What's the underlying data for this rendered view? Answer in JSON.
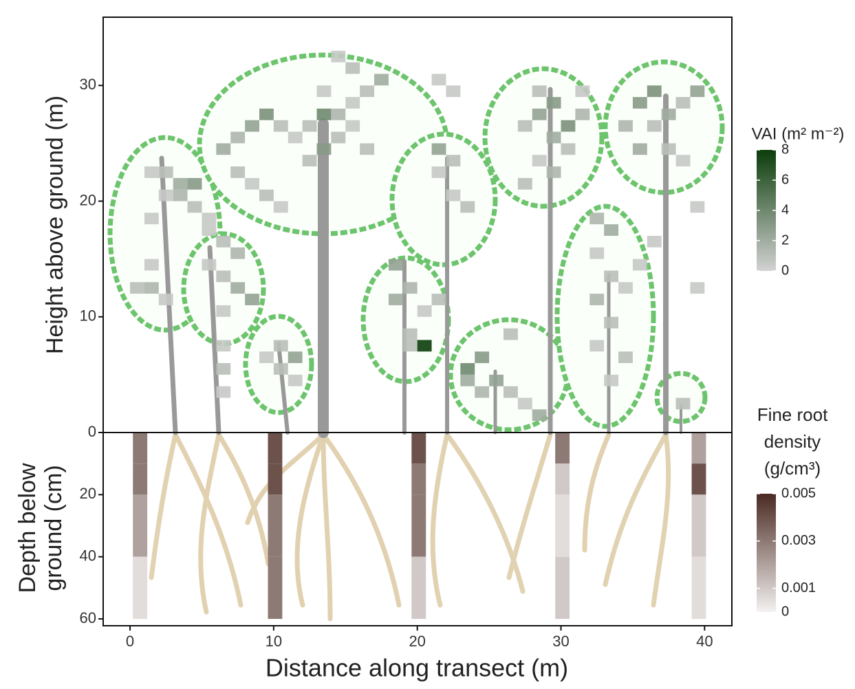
{
  "chart_data": [
    {
      "type": "heatmap",
      "ylabel": "Height above ground (m)",
      "xlim": [
        -1.87,
        41.9
      ],
      "ylim": [
        0,
        35.9
      ],
      "yticks": [
        0,
        10,
        20,
        30
      ],
      "voxels": {
        "x": [
          1,
          2,
          3,
          4,
          3,
          2,
          4,
          1,
          5,
          1,
          0,
          1,
          2,
          5,
          6,
          7,
          5,
          6,
          7,
          8,
          6,
          6,
          6,
          6,
          9,
          10,
          11,
          10,
          11,
          6,
          7,
          8,
          9,
          10,
          11,
          12,
          13,
          14,
          15,
          16,
          17,
          7,
          8,
          9,
          10,
          12,
          13,
          14,
          15,
          16,
          14,
          15,
          13,
          18,
          18,
          19,
          20,
          19,
          19,
          20,
          21,
          21,
          22,
          21,
          22,
          23,
          21,
          22,
          23,
          24,
          23,
          24,
          25,
          26,
          27,
          28,
          26,
          27,
          28,
          29,
          30,
          31,
          29,
          30,
          28,
          27,
          29,
          31,
          28,
          32,
          33,
          32,
          33,
          32,
          34,
          33,
          32,
          34,
          33,
          35,
          36,
          35,
          36,
          37,
          38,
          39,
          36,
          34,
          35,
          37,
          38,
          39,
          39,
          38
        ],
        "y": [
          22,
          22,
          21,
          21,
          20,
          20,
          19,
          18,
          18,
          14,
          12,
          12,
          11,
          17,
          16,
          15,
          14,
          13,
          12,
          11,
          10,
          7,
          5,
          3,
          6,
          7,
          6,
          5,
          4,
          24,
          25,
          26,
          27,
          26,
          25,
          26,
          27,
          25,
          28,
          29,
          30,
          22,
          21,
          20,
          19,
          23,
          24,
          27,
          26,
          24,
          32,
          31,
          29,
          14,
          11,
          12,
          10,
          8,
          7,
          7,
          11,
          24,
          23,
          22,
          20,
          19,
          30,
          29,
          5,
          6,
          4,
          3,
          4,
          3,
          2,
          1,
          8,
          26,
          27,
          28,
          26,
          27,
          25,
          24,
          23,
          21,
          22,
          29,
          29,
          18,
          17,
          15,
          13,
          11,
          12,
          9,
          7,
          6,
          4,
          14,
          16,
          28,
          29,
          27,
          28,
          29,
          26,
          26,
          24,
          24,
          23,
          19,
          12,
          2
        ],
        "values": [
          0.5,
          1,
          2,
          3,
          1.5,
          0.5,
          1,
          0.5,
          0.5,
          0.5,
          1,
          1.5,
          0.5,
          0.5,
          1,
          1.5,
          0.5,
          1,
          2,
          2.5,
          0.5,
          0.5,
          1,
          0.5,
          0.5,
          1,
          2.5,
          1,
          0.5,
          2,
          1.5,
          2.5,
          3.5,
          1,
          0.5,
          1,
          4,
          1,
          0.5,
          1,
          2,
          1,
          0.5,
          1,
          0.5,
          1,
          3,
          1.5,
          0.5,
          1,
          0.5,
          1,
          0.5,
          2.5,
          2,
          1.5,
          0.5,
          1,
          1,
          8,
          1,
          2.5,
          1,
          0.5,
          0.5,
          1,
          0.5,
          0.5,
          4,
          3,
          2,
          1.5,
          2.5,
          1,
          0.5,
          2,
          1,
          1,
          2.5,
          3,
          3.5,
          1.5,
          2,
          1,
          0.5,
          1,
          1.5,
          0.5,
          1,
          1.5,
          2,
          0.5,
          1,
          1.5,
          0.5,
          1,
          0.5,
          1,
          0.5,
          0.5,
          0.5,
          3,
          3.5,
          2,
          1,
          2.5,
          1,
          1.5,
          2,
          1,
          0.5,
          0.5,
          0.5,
          1
        ]
      },
      "colormap": [
        "#d2d2d2",
        "#0b3d0b"
      ],
      "colorbar": {
        "title": "VAI (m² m⁻²)",
        "lim": [
          0,
          8
        ],
        "ticks": [
          0,
          2,
          4,
          6,
          8
        ]
      }
    },
    {
      "type": "heatmap",
      "xlabel": "Distance along transect (m)",
      "ylabel_lines": [
        "Depth below",
        "ground (cm)"
      ],
      "xlim": [
        -1.87,
        41.9
      ],
      "xticks": [
        0,
        10,
        20,
        30,
        40
      ],
      "ylim": [
        62.2,
        0
      ],
      "yticks": [
        20,
        40,
        60
      ],
      "depth_edges": [
        0,
        10,
        20,
        40,
        60
      ],
      "cores": [
        {
          "x": 0.2,
          "values": [
            0.003,
            0.003,
            0.002,
            0.0005
          ]
        },
        {
          "x": 9.6,
          "values": [
            0.004,
            0.004,
            0.003,
            0.003
          ]
        },
        {
          "x": 19.6,
          "values": [
            0.004,
            0.003,
            0.003,
            0.001
          ]
        },
        {
          "x": 29.6,
          "values": [
            0.003,
            0.001,
            0.0005,
            0.001
          ]
        },
        {
          "x": 39.1,
          "values": [
            0.002,
            0.004,
            0.001,
            0.0005
          ]
        }
      ],
      "colormap": [
        "#f3f1f0",
        "#4a2a22"
      ],
      "colorbar": {
        "title_lines": [
          "Fine root",
          "density",
          "(g/cm³)"
        ],
        "lim": [
          0,
          0.005
        ],
        "ticks": [
          0,
          0.001,
          0.003,
          0.005
        ]
      }
    }
  ]
}
